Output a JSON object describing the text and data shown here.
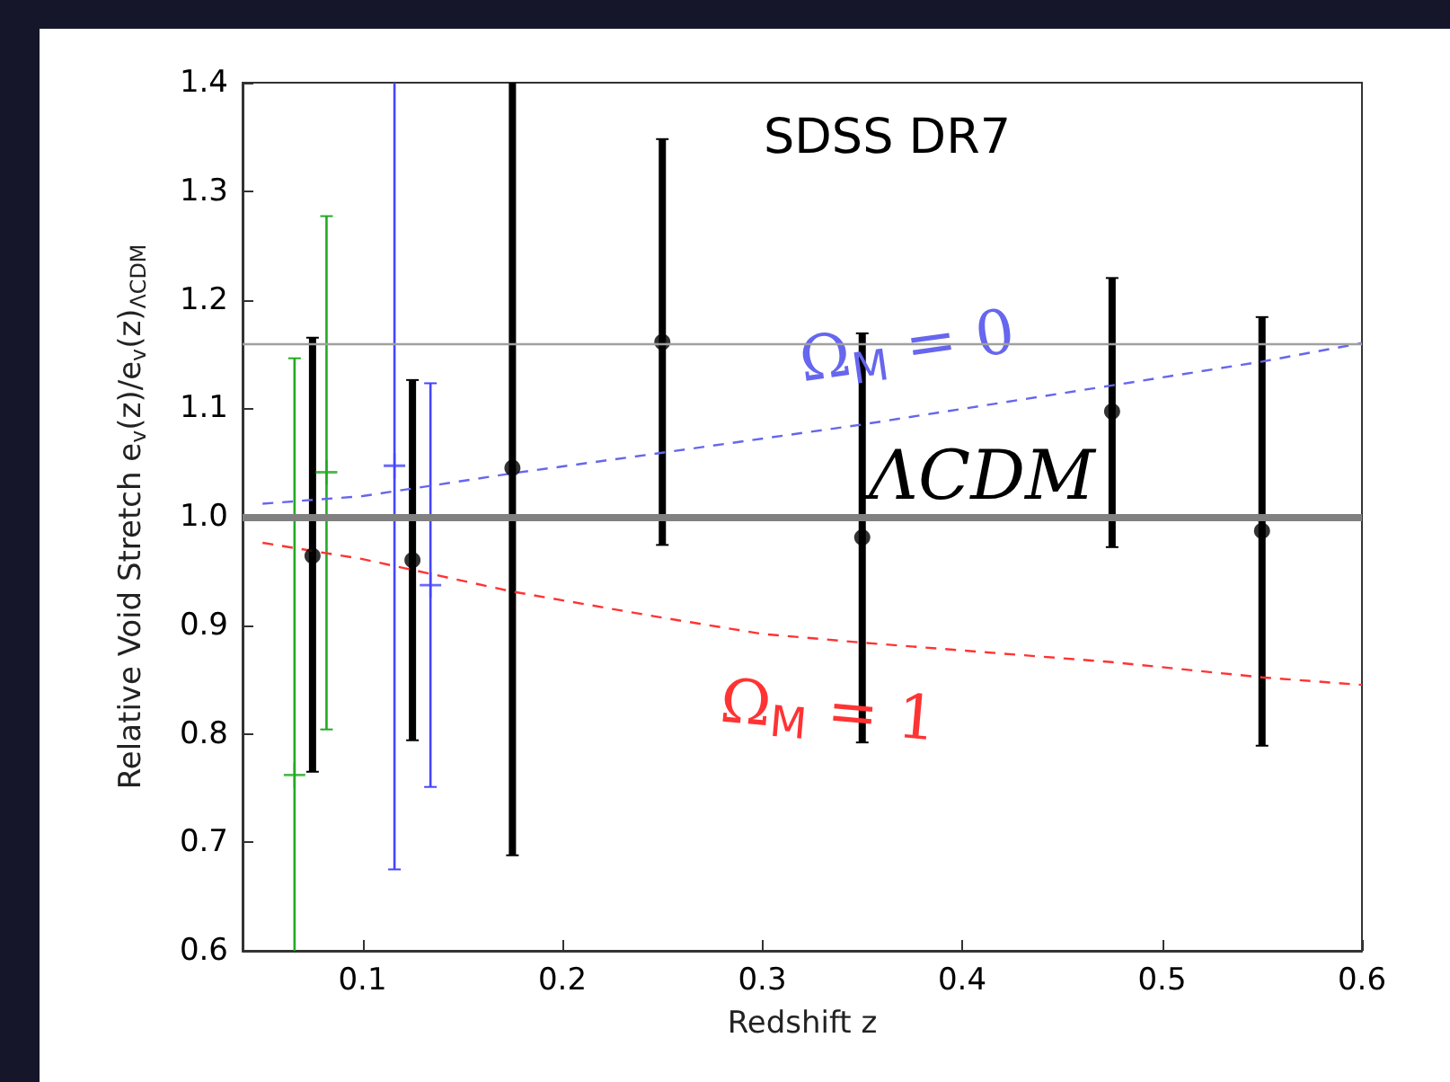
{
  "chart_data": {
    "type": "scatter",
    "title": "SDSS DR7",
    "xlabel": "Redshift z",
    "ylabel": "Relative Void Stretch e$_{v}$(z)/e$_{v}$(z)$_{ΛCDM}$",
    "xlim": [
      0.04,
      0.6
    ],
    "xticks": [
      0.1,
      0.2,
      0.3,
      0.4,
      0.5,
      0.6
    ],
    "ylim": [
      0.6,
      1.4
    ],
    "yticks": [
      0.6,
      0.7,
      0.8,
      0.9,
      {
        "value": 1,
        "label": "1.0"
      },
      1.1,
      1.2,
      1.3,
      1.4
    ],
    "grid": false,
    "legend": false,
    "ref_lines": [
      {
        "axis": "y",
        "value": 1.0,
        "label": "ΛCDM",
        "color": "#808080"
      },
      {
        "axis": "y",
        "value": 1.16,
        "color": "#a0a0a0"
      }
    ],
    "series": [
      {
        "color": "#000000",
        "marker": "circle",
        "x": [
          0.075,
          0.125,
          0.175,
          0.25,
          0.35,
          0.475,
          0.55
        ],
        "values": [
          0.964,
          0.96,
          1.045,
          1.161,
          0.981,
          1.097,
          0.987
        ],
        "errors": [
          [
            0.765,
            1.165
          ],
          [
            0.794,
            1.126
          ],
          [
            0.688,
            1.4
          ],
          [
            0.974,
            1.348
          ],
          [
            0.792,
            1.169
          ],
          [
            0.972,
            1.22
          ],
          [
            0.789,
            1.184
          ]
        ]
      },
      {
        "color": "#22aa22",
        "marker": "cross",
        "x": [
          0.066,
          0.082
        ],
        "values": [
          0.762,
          1.041
        ],
        "errors": [
          [
            0.6,
            1.146
          ],
          [
            0.804,
            1.277
          ]
        ]
      },
      {
        "color": "#4444ff",
        "marker": "cross",
        "x": [
          0.116,
          0.134
        ],
        "values": [
          1.047,
          0.937
        ],
        "errors": [
          [
            0.675,
            1.4
          ],
          [
            0.751,
            1.123
          ]
        ]
      },
      {
        "type": "line",
        "name": "Ω$_{M}$ = 0",
        "color": "#6666ee",
        "line_style": "dashed",
        "marker": "none",
        "x": [
          0.05,
          0.1,
          0.175,
          0.25,
          0.35,
          0.475,
          0.55,
          0.6
        ],
        "values": [
          1.012,
          1.019,
          1.04,
          1.059,
          1.085,
          1.121,
          1.143,
          1.16
        ]
      },
      {
        "type": "line",
        "name": "Ω$_{M}$ = 1",
        "color": "#ff3333",
        "line_style": "dashed",
        "marker": "none",
        "x": [
          0.05,
          0.1,
          0.175,
          0.25,
          0.3,
          0.35,
          0.475,
          0.55,
          0.6
        ],
        "values": [
          0.976,
          0.961,
          0.931,
          0.907,
          0.892,
          0.884,
          0.866,
          0.852,
          0.845
        ]
      }
    ]
  }
}
